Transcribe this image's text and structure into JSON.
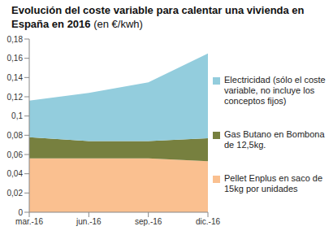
{
  "chart_data": {
    "type": "area",
    "title": "Evolución del coste variable para calentar una vivienda en España en 2016",
    "subtitle": "(en €/kwh)",
    "categories": [
      "mar.-16",
      "jun.-16",
      "sep.-16",
      "dic.-16"
    ],
    "series": [
      {
        "name": "Pellet Enplus en saco de 15kg por unidades",
        "color": "#fac090",
        "values": [
          0.056,
          0.056,
          0.056,
          0.053
        ]
      },
      {
        "name": "Gas Butano en Bombona de 12,5kg.",
        "color": "#77803f",
        "values": [
          0.022,
          0.018,
          0.018,
          0.024
        ]
      },
      {
        "name": "Electricidad (sólo el coste variable, no incluye los conceptos fijos)",
        "color": "#93cddd",
        "values": [
          0.038,
          0.05,
          0.061,
          0.088
        ]
      }
    ],
    "stacked": true,
    "grid": false,
    "legend": "right",
    "ylim": [
      0,
      0.18
    ],
    "yticks": [
      0,
      {
        "value": 0.02,
        "label": "0,02"
      },
      {
        "value": 0.04,
        "label": "0,04"
      },
      {
        "value": 0.06,
        "label": "0,06"
      },
      {
        "value": 0.08,
        "label": "0,08"
      },
      {
        "value": 0.1,
        "label": "0,1"
      },
      {
        "value": 0.12,
        "label": "0,12"
      },
      {
        "value": 0.14,
        "label": "0,14"
      },
      {
        "value": 0.16,
        "label": "0,16"
      },
      {
        "value": 0.18,
        "label": "0,18"
      }
    ]
  }
}
